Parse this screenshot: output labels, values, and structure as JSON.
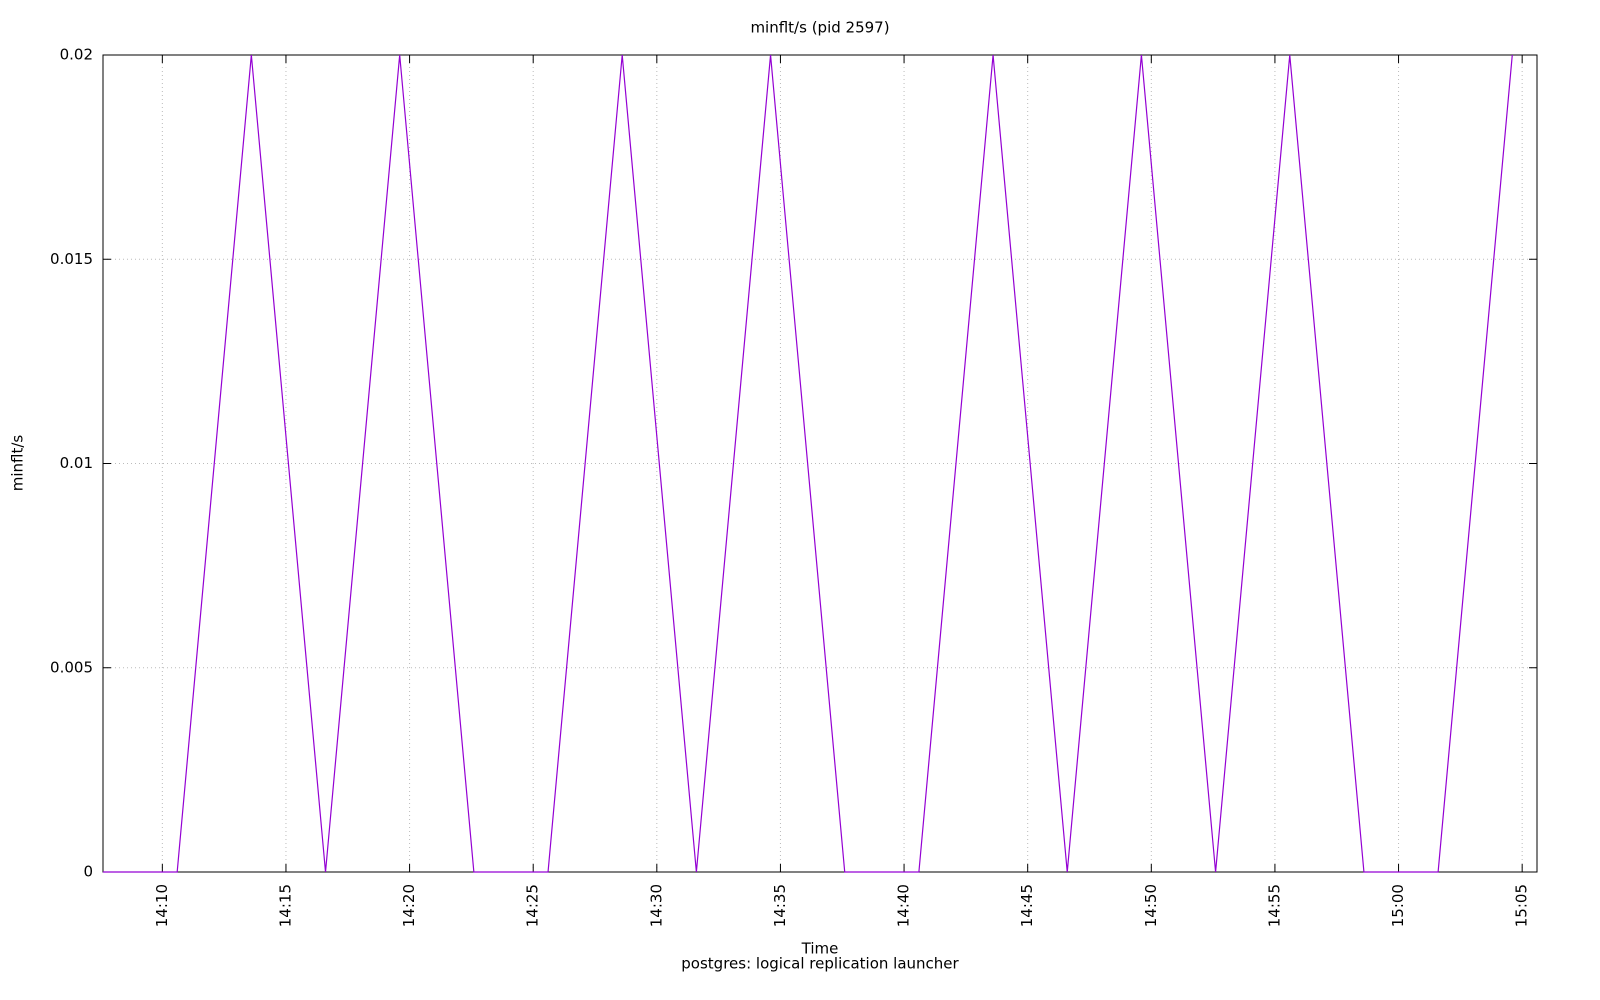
{
  "chart_data": {
    "type": "line",
    "title": "minflt/s (pid 2597)",
    "subtitle": "postgres: logical replication launcher",
    "x_label": "Time",
    "y_label": "minflt/s",
    "color": "#9400d3",
    "grid": true,
    "x": [
      "14:07:36",
      "14:10:36",
      "14:13:36",
      "14:16:36",
      "14:19:36",
      "14:22:36",
      "14:25:36",
      "14:28:36",
      "14:31:36",
      "14:34:36",
      "14:37:36",
      "14:40:36",
      "14:43:36",
      "14:46:36",
      "14:49:36",
      "14:52:36",
      "14:55:36",
      "14:58:36",
      "15:01:36",
      "15:04:36"
    ],
    "values": [
      0,
      0,
      0.02,
      0,
      0.02,
      0,
      0,
      0.02,
      0,
      0.02,
      0,
      0,
      0.02,
      0,
      0.02,
      0,
      0.02,
      0,
      0,
      0.02
    ],
    "xlim": [
      "14:07:36",
      "15:05:36"
    ],
    "xticks": [
      "14:10",
      "14:15",
      "14:20",
      "14:25",
      "14:30",
      "14:35",
      "14:40",
      "14:45",
      "14:50",
      "14:55",
      "15:00",
      "15:05"
    ],
    "ylim": [
      0,
      0.02
    ],
    "yticks": [
      0,
      0.005,
      0.01,
      0.015,
      0.02
    ]
  }
}
